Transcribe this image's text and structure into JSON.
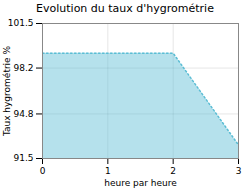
{
  "chart_data": {
    "type": "area",
    "title": "Evolution du taux d'hygrométrie",
    "xlabel": "heure par heure",
    "ylabel": "Taux hygrométrie %",
    "x": [
      0,
      2,
      3
    ],
    "values": [
      99.3,
      99.3,
      92.5
    ],
    "color": "#5bbdd4",
    "line_style": "dotted",
    "xlim": [
      0,
      3
    ],
    "ylim": [
      91.5,
      101.5
    ],
    "xticks": [
      0,
      1,
      2,
      3
    ],
    "yticks": [
      91.5,
      94.8,
      98.2,
      101.5
    ],
    "grid": true
  }
}
